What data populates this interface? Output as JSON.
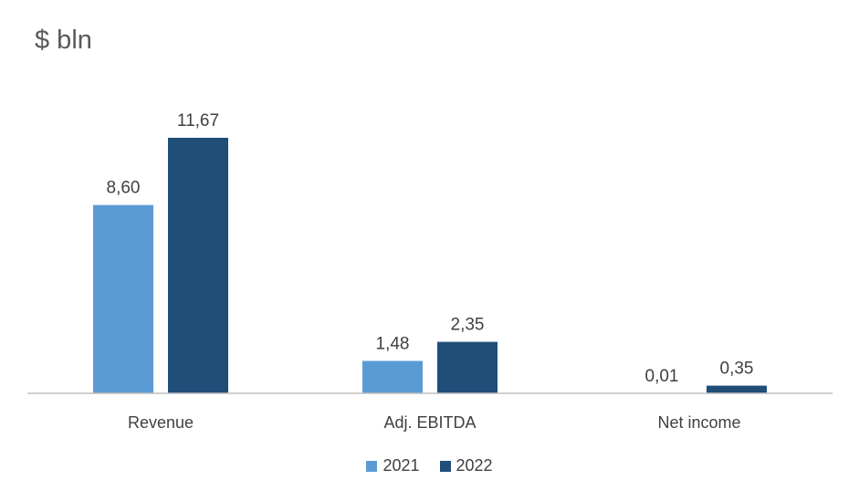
{
  "chart_data": {
    "type": "bar",
    "title": "$ bln",
    "categories": [
      "Revenue",
      "Adj. EBITDA",
      "Net income"
    ],
    "series": [
      {
        "name": "2021",
        "color": "#5B9BD5",
        "values": [
          8.6,
          1.48,
          0.01
        ],
        "labels": [
          "8,60",
          "1,48",
          "0,01"
        ]
      },
      {
        "name": "2022",
        "color": "#1F4E79",
        "values": [
          11.67,
          2.35,
          0.35
        ],
        "labels": [
          "11,67",
          "2,35",
          "0,35"
        ]
      }
    ],
    "ylim": [
      0,
      11.67
    ],
    "grid": false,
    "legend_position": "bottom"
  }
}
